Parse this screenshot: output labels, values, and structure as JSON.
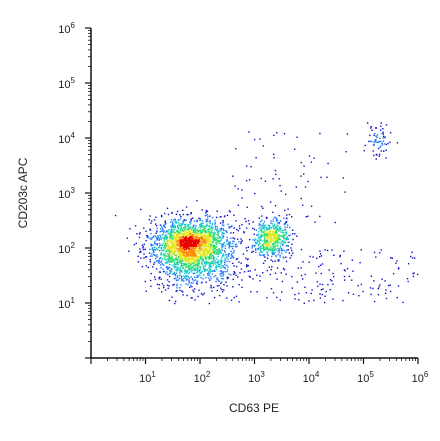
{
  "chart_data": {
    "type": "scatter",
    "title": "",
    "xlabel": "CD63 PE",
    "ylabel": "CD203c APC",
    "xscale": "log",
    "yscale": "log",
    "xlim": [
      1,
      1000000
    ],
    "ylim": [
      1,
      1000000
    ],
    "x_ticks": [
      "10^1",
      "10^2",
      "10^3",
      "10^4",
      "10^5",
      "10^6"
    ],
    "y_ticks": [
      "10^1",
      "10^2",
      "10^3",
      "10^4",
      "10^5",
      "10^6"
    ],
    "grid": false,
    "legend": "none",
    "color_scale": [
      "#1010c8",
      "#1e78ff",
      "#16c8c8",
      "#2ee06e",
      "#e6e61e",
      "#ff8c00",
      "#e60000"
    ],
    "populations": [
      {
        "id": "main",
        "center_x": 70,
        "center_y": 110,
        "spread_log_x": 0.38,
        "spread_log_y": 0.24,
        "events": 2300
      },
      {
        "id": "intermediate",
        "center_x": 2000,
        "center_y": 160,
        "spread_log_x": 0.17,
        "spread_log_y": 0.17,
        "events": 520
      },
      {
        "id": "upper-right",
        "center_x": 180000,
        "center_y": 9000,
        "spread_log_x": 0.12,
        "spread_log_y": 0.15,
        "events": 70
      },
      {
        "id": "bridge",
        "x_range": [
          300,
          50000
        ],
        "y_range": [
          200,
          15000
        ],
        "events": 70
      },
      {
        "id": "background",
        "x_range": [
          10,
          1000000
        ],
        "y_range": [
          10,
          100
        ],
        "events": 260
      }
    ]
  }
}
